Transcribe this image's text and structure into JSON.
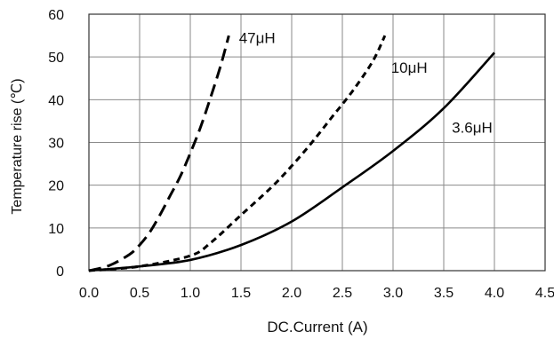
{
  "chart_data": {
    "type": "line",
    "title": "",
    "xlabel": "DC.Current (A)",
    "ylabel": "Temperature rise (℃)",
    "xlim": [
      0,
      4.5
    ],
    "ylim": [
      0,
      60
    ],
    "x_ticks": [
      0.0,
      0.5,
      1.0,
      1.5,
      2.0,
      2.5,
      3.0,
      3.5,
      4.0,
      4.5
    ],
    "x_tick_labels": [
      "0.0",
      "0.5",
      "1.0",
      "1.5",
      "2.0",
      "2.5",
      "3.0",
      "3.5",
      "4.0",
      "4.5"
    ],
    "y_ticks": [
      0,
      10,
      20,
      30,
      40,
      50,
      60
    ],
    "y_tick_labels": [
      "0",
      "10",
      "20",
      "30",
      "40",
      "50",
      "60"
    ],
    "grid": true,
    "legend": "none",
    "series": [
      {
        "name": "47μH",
        "style": "dashed",
        "color": "#000000",
        "x": [
          0.0,
          0.2,
          0.4,
          0.5,
          0.6,
          0.7,
          0.8,
          0.9,
          1.0,
          1.1,
          1.2,
          1.3,
          1.38
        ],
        "y": [
          0,
          1.2,
          3.8,
          6.0,
          9.0,
          13.0,
          17.5,
          22.0,
          27.5,
          33.5,
          40.5,
          48.0,
          55.0
        ]
      },
      {
        "name": "10μH",
        "style": "dotted-dash",
        "color": "#000000",
        "x": [
          0.0,
          0.5,
          1.0,
          1.2,
          1.5,
          1.8,
          2.0,
          2.2,
          2.4,
          2.6,
          2.8,
          2.92
        ],
        "y": [
          0,
          1.0,
          3.5,
          6.5,
          13.0,
          19.5,
          24.5,
          30.0,
          36.0,
          42.0,
          49.0,
          55.0
        ]
      },
      {
        "name": "3.6μH",
        "style": "solid",
        "color": "#000000",
        "x": [
          0.0,
          0.5,
          1.0,
          1.5,
          2.0,
          2.5,
          3.0,
          3.5,
          4.0
        ],
        "y": [
          0,
          1.0,
          2.5,
          6.0,
          11.5,
          19.5,
          28.0,
          38.0,
          51.0
        ]
      }
    ],
    "annotations": [
      {
        "text": "47μH",
        "x": 1.48,
        "y": 54.5
      },
      {
        "text": "10μH",
        "x": 2.98,
        "y": 47.5
      },
      {
        "text": "3.6μH",
        "x": 3.58,
        "y": 33.5
      }
    ]
  }
}
